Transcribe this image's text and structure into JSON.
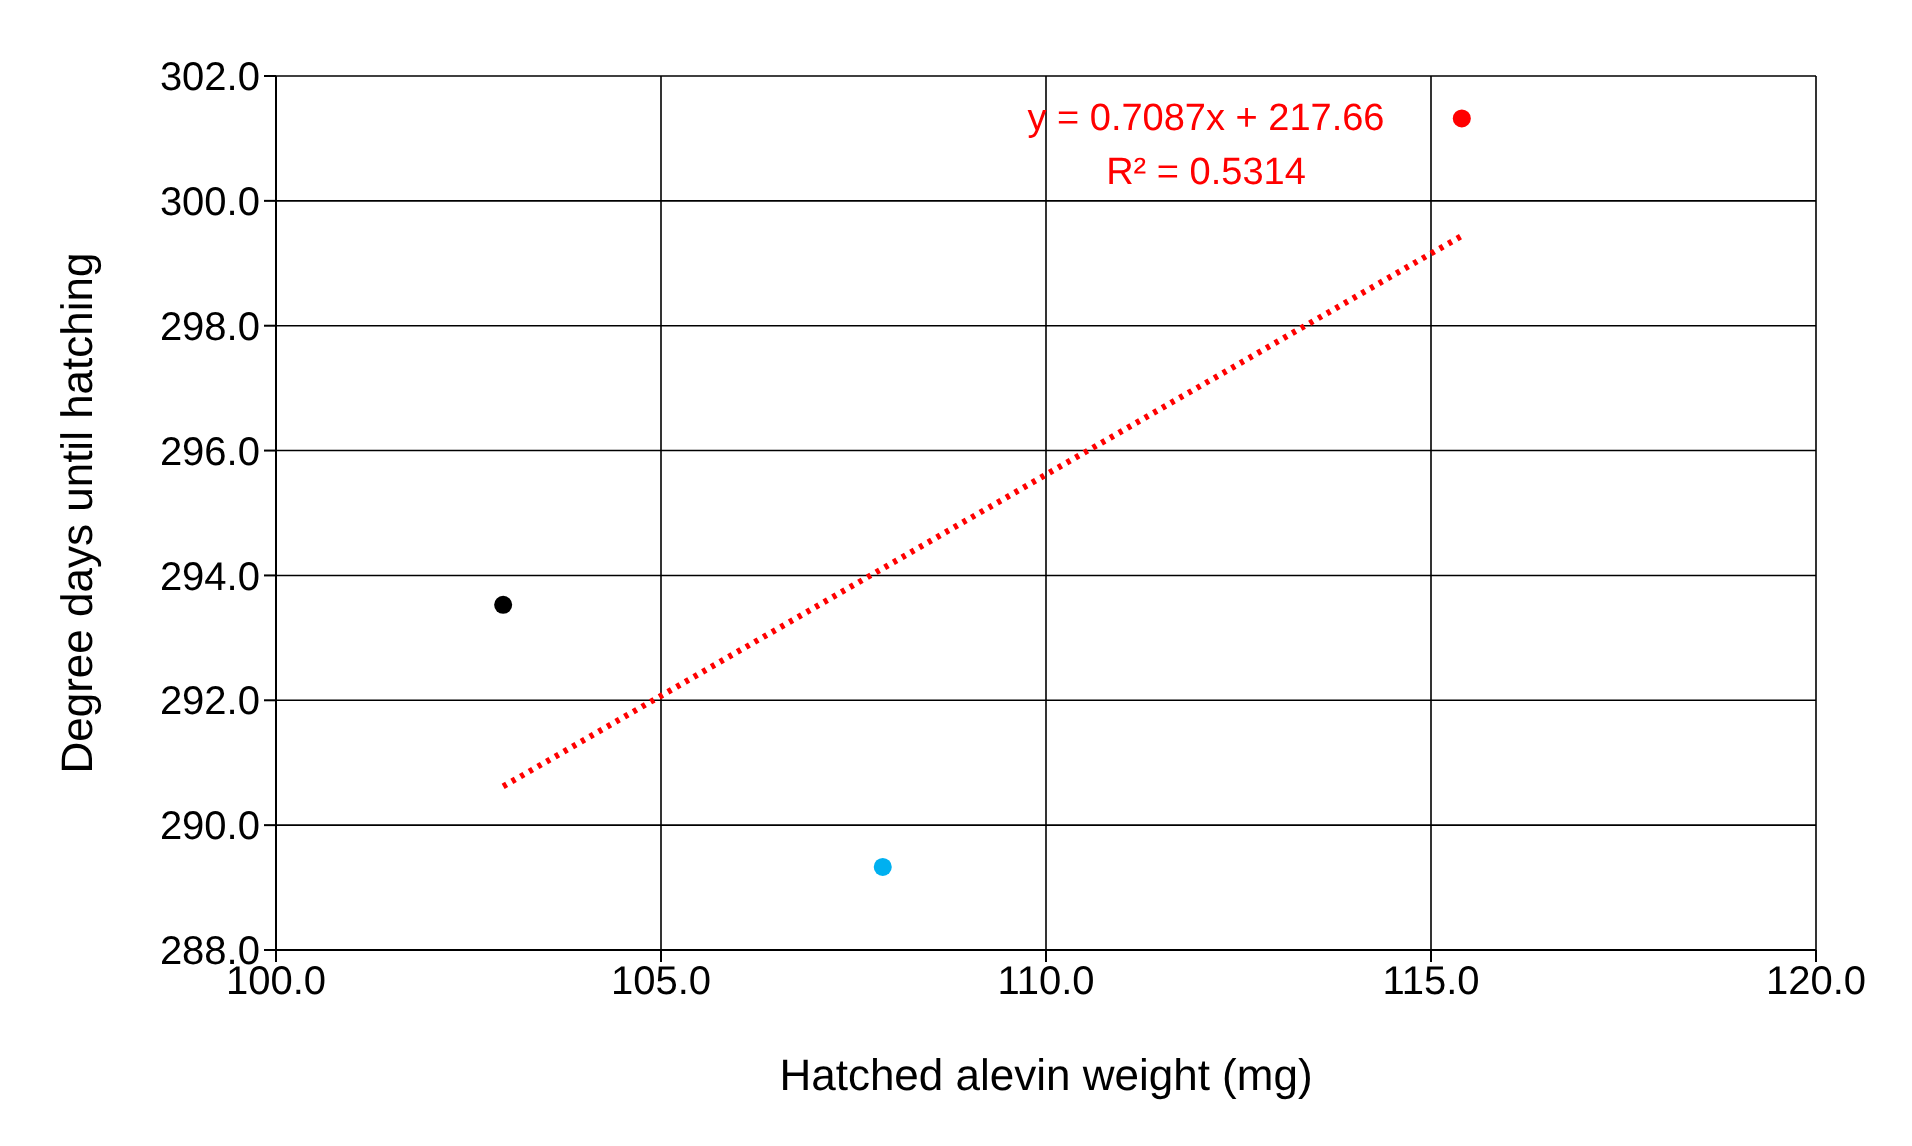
{
  "chart_data": {
    "type": "scatter",
    "xlabel": "Hatched alevin weight (mg)",
    "ylabel": "Degree days until hatching",
    "series": [
      {
        "x": [
          102.95,
          107.88,
          115.4
        ],
        "values": [
          293.53,
          289.33,
          301.32
        ],
        "colors": [
          "#000000",
          "#00b0f0",
          "#ff0000"
        ]
      },
      {
        "type": "line",
        "x": [
          102.95,
          115.4
        ],
        "values": [
          290.62,
          299.44
        ],
        "color": "#ff0000",
        "line_style": "dotted",
        "marker": "none"
      }
    ],
    "annotations": [
      "y = 0.7087x + 217.66",
      "R² = 0.5314"
    ],
    "xlim": [
      100,
      120
    ],
    "xticks": [
      {
        "value": 100,
        "label": "100.0"
      },
      {
        "value": 105,
        "label": "105.0"
      },
      {
        "value": 110,
        "label": "110.0"
      },
      {
        "value": 115,
        "label": "115.0"
      },
      {
        "value": 120,
        "label": "120.0"
      }
    ],
    "ylim": [
      288,
      302
    ],
    "yticks": [
      {
        "value": 288,
        "label": "288.0"
      },
      {
        "value": 290,
        "label": "290.0"
      },
      {
        "value": 292,
        "label": "292.0"
      },
      {
        "value": 294,
        "label": "294.0"
      },
      {
        "value": 296,
        "label": "296.0"
      },
      {
        "value": 298,
        "label": "298.0"
      },
      {
        "value": 300,
        "label": "300.0"
      },
      {
        "value": 302,
        "label": "302.0"
      }
    ],
    "grid": true,
    "legend": false,
    "marker": "circle"
  }
}
